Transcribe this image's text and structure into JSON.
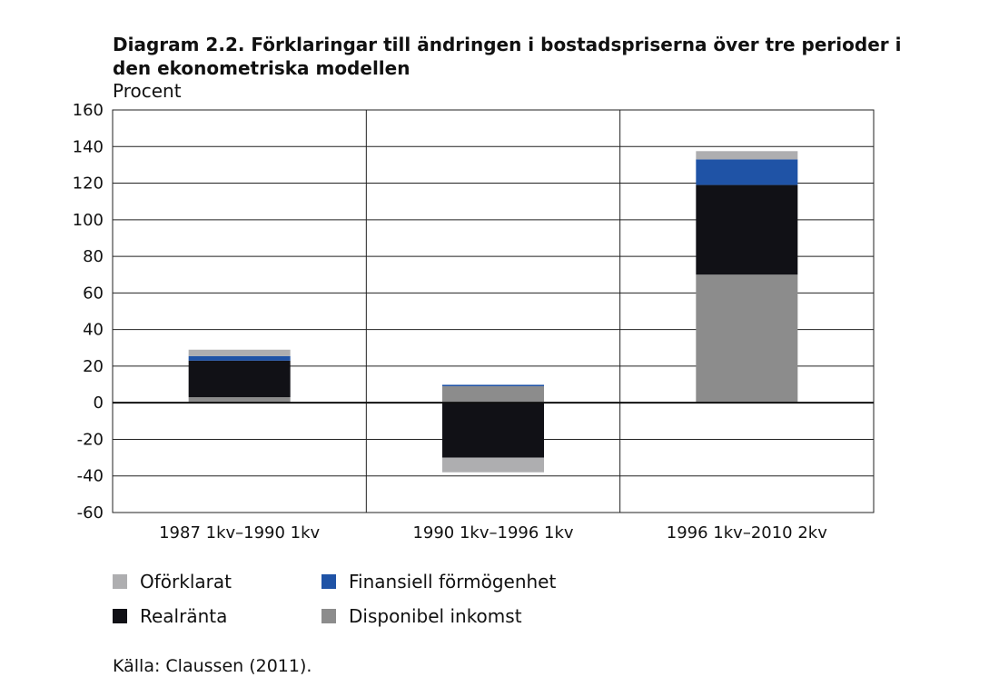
{
  "chart_data": {
    "type": "bar",
    "stacked": true,
    "title": "Diagram 2.2. Förklaringar till ändringen i bostadspriserna över tre perioder i den ekonometriska modellen",
    "subtitle": "Procent",
    "categories": [
      "1987 1kv–1990 1kv",
      "1990 1kv–1996 1kv",
      "1996 1kv–2010 2kv"
    ],
    "series": [
      {
        "name": "Disponibel inkomst",
        "color": "#8c8c8c",
        "values": [
          3,
          9,
          70
        ]
      },
      {
        "name": "Realränta",
        "color": "#111116",
        "values": [
          20,
          -30,
          49
        ]
      },
      {
        "name": "Finansiell förmögenhet",
        "color": "#1f53a6",
        "values": [
          2.5,
          0.8,
          14
        ]
      },
      {
        "name": "Oförklarat",
        "color": "#aeaeb0",
        "values": [
          3.5,
          -8,
          4.5
        ]
      }
    ],
    "ylim": [
      -60,
      160
    ],
    "yticks": [
      160,
      140,
      120,
      100,
      80,
      60,
      40,
      20,
      0,
      -20,
      -40,
      -60
    ],
    "grid": true,
    "legend_order": [
      "Oförklarat",
      "Finansiell förmögenhet",
      "Realränta",
      "Disponibel inkomst"
    ],
    "legend_placement": "bottom"
  },
  "source": "Källa: Claussen (2011)."
}
